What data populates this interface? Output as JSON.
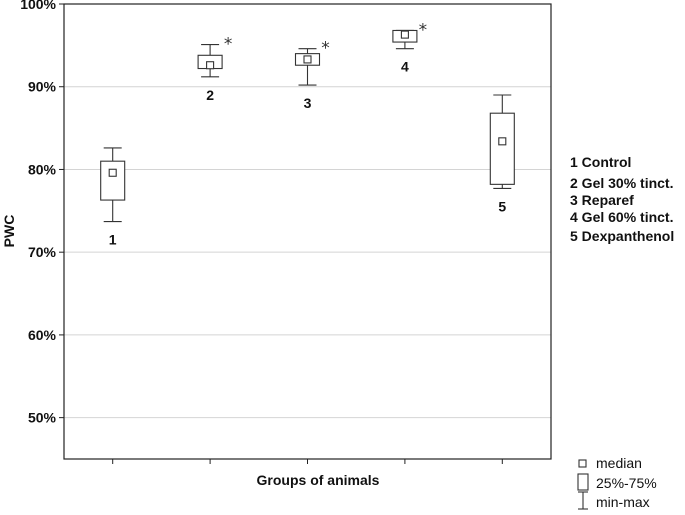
{
  "chart_data": {
    "type": "box",
    "ylabel": "PWC",
    "xlabel": "Groups of animals",
    "yaxis": {
      "min": 45,
      "max": 100,
      "ticks": [
        50,
        60,
        70,
        80,
        90,
        100
      ],
      "tick_suffix": "%"
    },
    "grid": "horizontal",
    "boxes": [
      {
        "label": "1",
        "min": 73.7,
        "q1": 76.3,
        "median": 79.6,
        "q3": 81.0,
        "max": 82.6,
        "significant": false
      },
      {
        "label": "2",
        "min": 91.2,
        "q1": 92.2,
        "median": 92.6,
        "q3": 93.8,
        "max": 95.1,
        "significant": true
      },
      {
        "label": "3",
        "min": 90.2,
        "q1": 92.6,
        "median": 93.3,
        "q3": 94.0,
        "max": 94.6,
        "significant": true
      },
      {
        "label": "4",
        "min": 94.6,
        "q1": 95.4,
        "median": 96.3,
        "q3": 96.8,
        "max": 96.8,
        "significant": true
      },
      {
        "label": "5",
        "min": 77.7,
        "q1": 78.2,
        "median": 83.4,
        "q3": 86.8,
        "max": 89.0,
        "significant": false
      }
    ],
    "significance_symbol": "*",
    "group_legend": [
      "1 Control",
      "2 Gel 30% tinct.",
      "3 Reparef",
      "4 Gel 60% tinct.",
      "5 Dexpanthenol"
    ],
    "key": {
      "median": "median",
      "box": "25%-75%",
      "whisker": "min-max"
    },
    "legend_placement": "right"
  }
}
